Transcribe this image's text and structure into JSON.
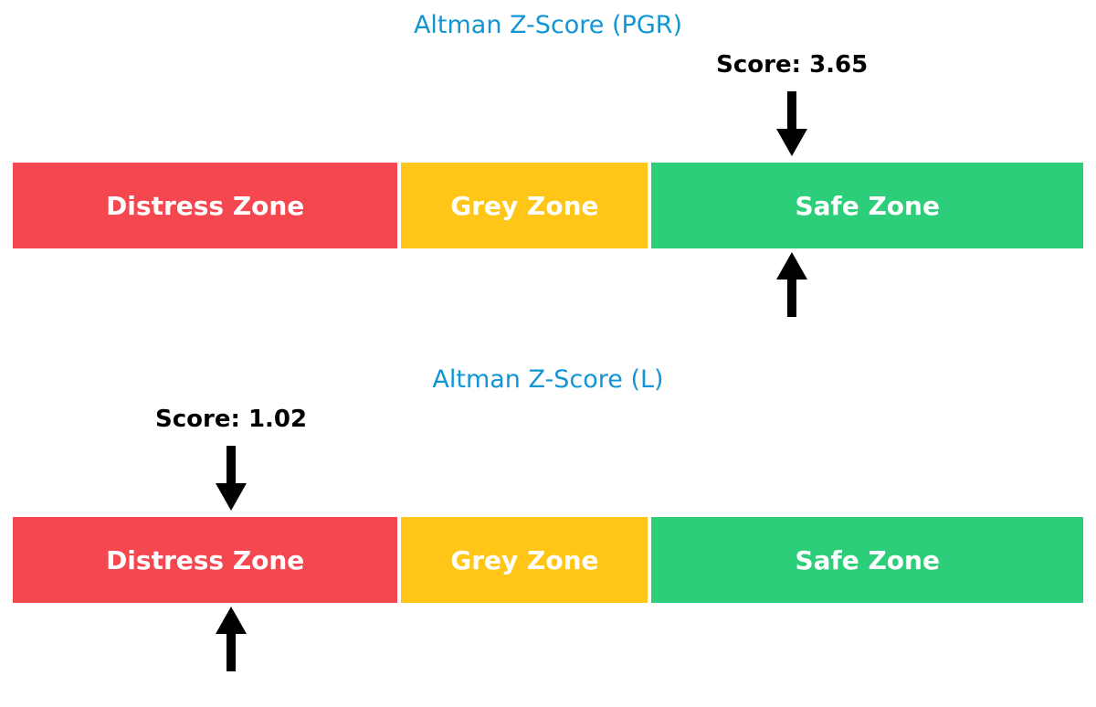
{
  "page": {
    "background": "#ffffff",
    "arrow_color": "#000000",
    "zone_text_color": "#ffffff"
  },
  "chart_data": [
    {
      "type": "zone-bar",
      "title": "Altman Z-Score (PGR)",
      "title_color": "#1295d3",
      "score": 3.65,
      "score_label": "Score: 3.65",
      "score_text_color": "#000000",
      "marker_pct": 72.8,
      "score_zone": "Safe Zone",
      "zones": [
        {
          "label": "Distress Zone",
          "color": "#f4474f",
          "width_pct": 36.2
        },
        {
          "label": "Grey Zone",
          "color": "#ffc617",
          "width_pct": 23.2
        },
        {
          "label": "Safe Zone",
          "color": "#2dce79",
          "width_pct": 40.6
        }
      ]
    },
    {
      "type": "zone-bar",
      "title": "Altman Z-Score (L)",
      "title_color": "#1295d3",
      "score": 1.02,
      "score_label": "Score: 1.02",
      "score_text_color": "#000000",
      "marker_pct": 20.4,
      "score_zone": "Distress Zone",
      "zones": [
        {
          "label": "Distress Zone",
          "color": "#f4474f",
          "width_pct": 36.2
        },
        {
          "label": "Grey Zone",
          "color": "#ffc617",
          "width_pct": 23.2
        },
        {
          "label": "Safe Zone",
          "color": "#2dce79",
          "width_pct": 40.6
        }
      ]
    }
  ]
}
